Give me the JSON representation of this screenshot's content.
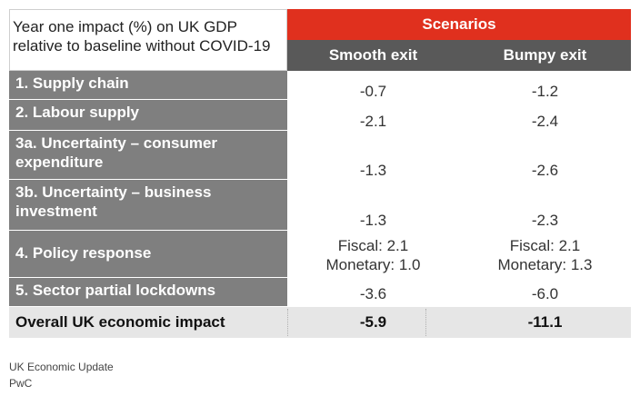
{
  "table": {
    "title": "Year one impact (%) on UK GDP relative to baseline without COVID-19",
    "scenarios_label": "Scenarios",
    "columns": [
      "Smooth exit",
      "Bumpy exit"
    ],
    "rows": [
      {
        "label": "1. Supply chain",
        "smooth": "-0.7",
        "bumpy": "-1.2"
      },
      {
        "label": "2. Labour supply",
        "smooth": "-2.1",
        "bumpy": "-2.4"
      },
      {
        "label": "3a. Uncertainty – consumer expenditure",
        "smooth": "-1.3",
        "bumpy": "-2.6"
      },
      {
        "label": "3b. Uncertainty – business investment",
        "smooth": "-1.3",
        "bumpy": "-2.3"
      },
      {
        "label": "4. Policy response",
        "smooth_fiscal": "Fiscal: 2.1",
        "smooth_monetary": "Monetary: 1.0",
        "bumpy_fiscal": "Fiscal: 2.1",
        "bumpy_monetary": "Monetary: 1.3"
      },
      {
        "label": "5. Sector partial lockdowns",
        "smooth": "-3.6",
        "bumpy": "-6.0"
      }
    ],
    "overall": {
      "label": "Overall UK economic impact",
      "smooth": "-5.9",
      "bumpy": "-11.1"
    }
  },
  "footer": {
    "line1": "UK Economic Update",
    "line2": "PwC"
  },
  "colors": {
    "accent": "#e0301e",
    "header": "#595959",
    "row_label": "#7f7f7f",
    "overall": "#e6e6e6"
  },
  "chart_data": {
    "type": "table",
    "title": "Year one impact (%) on UK GDP relative to baseline without COVID-19",
    "columns": [
      "Smooth exit",
      "Bumpy exit"
    ],
    "rows": [
      [
        "1. Supply chain",
        -0.7,
        -1.2
      ],
      [
        "2. Labour supply",
        -2.1,
        -2.4
      ],
      [
        "3a. Uncertainty – consumer expenditure",
        -1.3,
        -2.6
      ],
      [
        "3b. Uncertainty – business investment",
        -1.3,
        -2.3
      ],
      [
        "4. Policy response",
        "Fiscal: 2.1 / Monetary: 1.0",
        "Fiscal: 2.1 / Monetary: 1.3"
      ],
      [
        "5. Sector partial lockdowns",
        -3.6,
        -6.0
      ],
      [
        "Overall UK economic impact",
        -5.9,
        -11.1
      ]
    ]
  }
}
